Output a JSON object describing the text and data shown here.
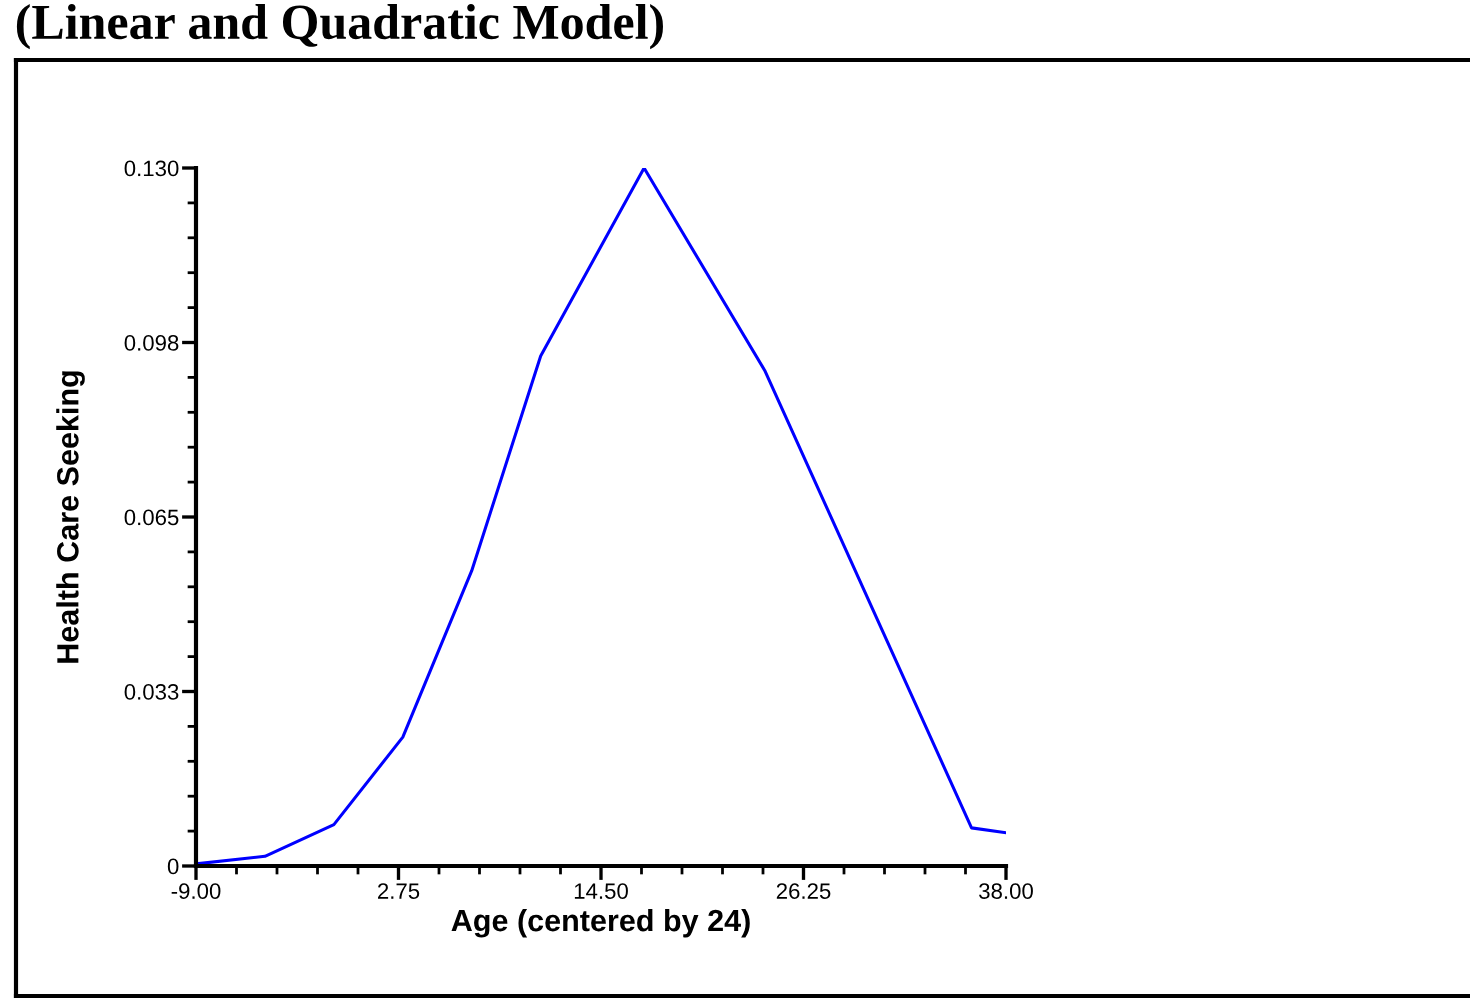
{
  "chart_data": {
    "type": "line",
    "title": "(Linear and Quadratic Model)",
    "xlabel": "Age (centered by 24)",
    "ylabel": "Health Care Seeking",
    "x": [
      -9,
      -5,
      -1,
      3,
      7,
      11,
      17,
      24,
      36,
      38
    ],
    "series": [
      {
        "color": "#0000ff",
        "values": [
          0.0004,
          0.0018,
          0.0077,
          0.024,
          0.055,
          0.095,
          0.13,
          0.0923,
          0.0071,
          0.0062
        ]
      }
    ],
    "xlim": [
      -9,
      38
    ],
    "ylim": [
      0,
      0.13
    ],
    "xticks": [
      {
        "value": -9,
        "label": "-9.00"
      },
      {
        "value": 2.75,
        "label": "2.75"
      },
      {
        "value": 14.5,
        "label": "14.50"
      },
      {
        "value": 26.25,
        "label": "26.25"
      },
      {
        "value": 38,
        "label": "38.00"
      }
    ],
    "yticks": [
      0,
      {
        "value": 0.0325,
        "label": "0.033"
      },
      {
        "value": 0.065,
        "label": "0.065"
      },
      {
        "value": 0.0975,
        "label": "0.098"
      },
      {
        "value": 0.13,
        "label": "0.130"
      }
    ],
    "grid": false,
    "legend": false,
    "marker": "none",
    "line_style": "solid"
  }
}
